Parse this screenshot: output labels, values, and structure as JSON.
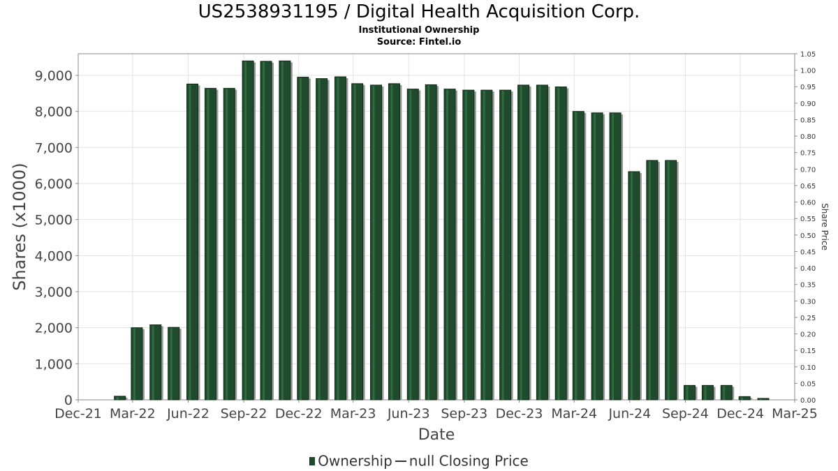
{
  "chart_data": {
    "type": "bar",
    "title": "US2538931195 / Digital Health Acquisition Corp.",
    "subtitle": "Institutional Ownership",
    "source": "Source: Fintel.io",
    "xlabel": "Date",
    "ylabel": "Shares (x1000)",
    "y2label": "Share Price",
    "x_start": "2021-12-01",
    "x_end": "2025-03-01",
    "x_ticks": [
      "Dec-21",
      "Mar-22",
      "Jun-22",
      "Sep-22",
      "Dec-22",
      "Mar-23",
      "Jun-23",
      "Sep-23",
      "Dec-23",
      "Mar-24",
      "Jun-24",
      "Sep-24",
      "Dec-24",
      "Mar-25"
    ],
    "ylim": [
      0,
      9600
    ],
    "y_ticks": [
      "0",
      "1,000",
      "2,000",
      "3,000",
      "4,000",
      "5,000",
      "6,000",
      "7,000",
      "8,000",
      "9,000"
    ],
    "y2lim": [
      0,
      1.05
    ],
    "y2_ticks": [
      "0.00",
      "0.05",
      "0.10",
      "0.15",
      "0.20",
      "0.25",
      "0.30",
      "0.35",
      "0.40",
      "0.45",
      "0.50",
      "0.55",
      "0.60",
      "0.65",
      "0.70",
      "0.75",
      "0.80",
      "0.85",
      "0.90",
      "0.95",
      "1.00",
      "1.05"
    ],
    "grid": true,
    "bar_color": "#1f4a2c",
    "series": [
      {
        "name": "Ownership",
        "dates": [
          "2022-02-08",
          "2022-03-08",
          "2022-04-08",
          "2022-05-08",
          "2022-06-08",
          "2022-07-08",
          "2022-08-08",
          "2022-09-08",
          "2022-10-08",
          "2022-11-08",
          "2022-12-08",
          "2023-01-08",
          "2023-02-08",
          "2023-03-08",
          "2023-04-08",
          "2023-05-08",
          "2023-06-08",
          "2023-07-08",
          "2023-08-08",
          "2023-09-08",
          "2023-10-08",
          "2023-11-08",
          "2023-12-08",
          "2024-01-08",
          "2024-02-08",
          "2024-03-08",
          "2024-04-08",
          "2024-05-08",
          "2024-06-08",
          "2024-07-08",
          "2024-08-08",
          "2024-09-08",
          "2024-10-08",
          "2024-11-08",
          "2024-12-08",
          "2025-01-08"
        ],
        "values": [
          100,
          2000,
          2080,
          2010,
          8760,
          8640,
          8640,
          9400,
          9390,
          9400,
          8950,
          8910,
          8960,
          8770,
          8730,
          8770,
          8620,
          8740,
          8620,
          8590,
          8590,
          8590,
          8730,
          8730,
          8680,
          8000,
          7960,
          7960,
          6330,
          6640,
          6640,
          400,
          400,
          400,
          90,
          40
        ]
      },
      {
        "name": "null Closing Price",
        "values": []
      }
    ]
  }
}
